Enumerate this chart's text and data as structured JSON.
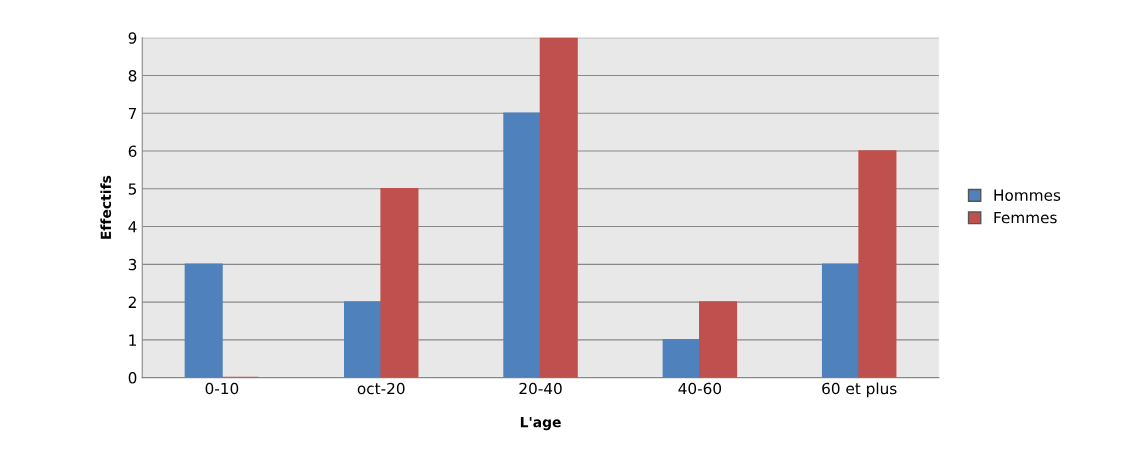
{
  "chart_data": {
    "type": "bar",
    "xlabel": "L'age",
    "ylabel": "Effectifs",
    "categories": [
      "0-10",
      "oct-20",
      "20-40",
      "40-60",
      "60 et plus"
    ],
    "series": [
      {
        "name": "Hommes",
        "color": "#4f81bd",
        "values": [
          3,
          2,
          7,
          1,
          3
        ]
      },
      {
        "name": "Femmes",
        "color": "#c0504d",
        "values": [
          0,
          5,
          9,
          2,
          6
        ]
      }
    ],
    "ylim": [
      0,
      9
    ],
    "yticks": [
      0,
      1,
      2,
      3,
      4,
      5,
      6,
      7,
      8,
      9
    ],
    "grid": "y",
    "legend": "right"
  }
}
